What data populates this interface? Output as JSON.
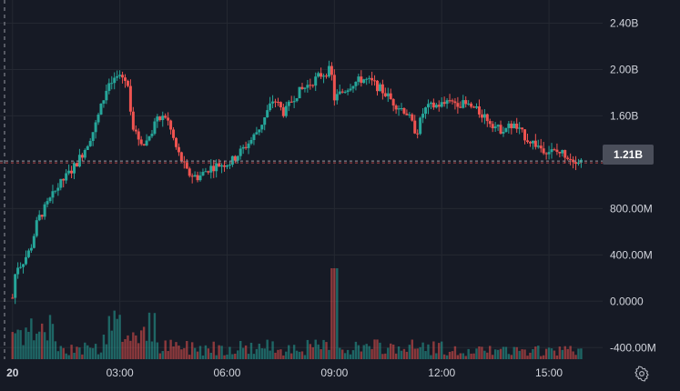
{
  "chart_data": {
    "type": "candlestick",
    "title": "",
    "ylim": [
      -500000000,
      2600000000
    ],
    "y_ticks": [
      "2.40B",
      "2.00B",
      "1.60B",
      "1.21B",
      "800.00M",
      "400.00M",
      "0.0000",
      "-400.00M"
    ],
    "y_tick_values": [
      2400000000,
      2000000000,
      1600000000,
      800000000,
      400000000,
      0,
      -400000000
    ],
    "x_ticks": [
      "20",
      "03:00",
      "06:00",
      "09:00",
      "12:00",
      "15:00"
    ],
    "x_tick_hours": [
      0,
      3,
      6,
      9,
      12,
      15
    ],
    "x_range_hours": [
      -0.35,
      16.5
    ],
    "last_value": 1210000000,
    "last_value_label": "1.21B",
    "up_color": "#26a69a",
    "down_color": "#ef5350",
    "close_series_hours_and_values": {
      "hours": [
        0,
        0.1,
        0.25,
        0.5,
        0.7,
        1.0,
        1.3,
        1.7,
        2.0,
        2.3,
        2.6,
        2.8,
        3.0,
        3.2,
        3.4,
        3.7,
        4.0,
        4.3,
        4.6,
        4.9,
        5.2,
        5.5,
        5.8,
        6.1,
        6.4,
        6.7,
        7.0,
        7.3,
        7.6,
        7.9,
        8.2,
        8.6,
        8.9,
        9.0,
        9.2,
        9.5,
        9.8,
        10.1,
        10.4,
        10.7,
        11.0,
        11.3,
        11.5,
        11.7,
        12.0,
        12.4,
        12.8,
        13.2,
        13.6,
        14.0,
        14.4,
        14.8,
        15.1,
        15.4,
        15.6,
        15.9
      ],
      "values": [
        30000000,
        300000000,
        320000000,
        450000000,
        700000000,
        850000000,
        1000000000,
        1150000000,
        1300000000,
        1500000000,
        1800000000,
        1900000000,
        1950000000,
        1900000000,
        1450000000,
        1350000000,
        1550000000,
        1600000000,
        1300000000,
        1100000000,
        1070000000,
        1150000000,
        1180000000,
        1200000000,
        1300000000,
        1400000000,
        1550000000,
        1750000000,
        1620000000,
        1780000000,
        1850000000,
        1950000000,
        2000000000,
        1750000000,
        1800000000,
        1880000000,
        1920000000,
        1880000000,
        1800000000,
        1700000000,
        1640000000,
        1450000000,
        1650000000,
        1680000000,
        1700000000,
        1720000000,
        1680000000,
        1600000000,
        1480000000,
        1520000000,
        1400000000,
        1320000000,
        1290000000,
        1280000000,
        1240000000,
        1210000000
      ]
    },
    "volume_note": "volume histogram shown at bottom in up/down colors"
  },
  "ui": {
    "settings_icon": "gear-icon"
  }
}
